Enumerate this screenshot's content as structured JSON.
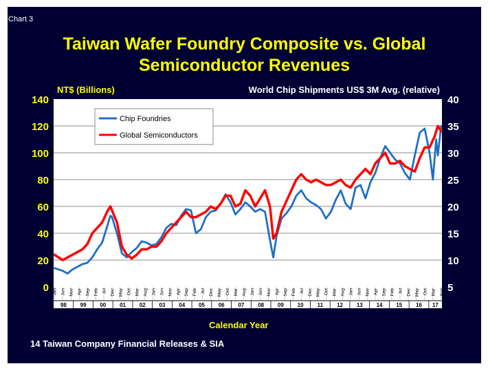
{
  "slide": {
    "chart_number": "Chart 3",
    "title_line1": "Taiwan Wafer Foundry Composite vs. Global",
    "title_line2": "Semiconductor Revenues",
    "source": "14 Taiwan Company Financial Releases & SIA",
    "background_color": "#000033",
    "title_color": "#ffff00"
  },
  "chart_data": {
    "type": "line",
    "title": "Taiwan Wafer Foundry Composite vs. Global Semiconductor Revenues",
    "xlabel": "Calendar Year",
    "ylabel_left": "NT$ (Billions)",
    "ylabel_right": "World Chip Shipments US$ 3M Avg. (relative)",
    "ylim_left": [
      0,
      140
    ],
    "ylim_right": [
      5,
      40
    ],
    "yticks_left": [
      "0",
      "20",
      "40",
      "60",
      "80",
      "100",
      "120",
      "140"
    ],
    "yticks_right": [
      "5",
      "10",
      "15",
      "20",
      "25",
      "30",
      "35",
      "40"
    ],
    "grid": true,
    "legend_position": "top-left",
    "x_start": "1998-01",
    "x_end": "2017-08",
    "month_ticks": [
      "Jan",
      "Jun",
      "Nov",
      "Apr",
      "Sep",
      "Feb",
      "Jul",
      "Dec",
      "May",
      "Oct",
      "Mar",
      "Aug",
      "Jan",
      "Jun",
      "Nov",
      "Apr",
      "Sep",
      "Feb",
      "Jul",
      "Dec",
      "May",
      "Oct",
      "Mar",
      "Aug",
      "Jan",
      "Jun",
      "Nov",
      "Apr",
      "Sep",
      "Feb",
      "Jul",
      "Dec",
      "May",
      "Oct",
      "Mar",
      "Aug",
      "Jan",
      "Jun",
      "Nov",
      "Apr",
      "Sep",
      "Feb",
      "Jul",
      "Dec",
      "May",
      "Oct",
      "Mar",
      "Aug"
    ],
    "year_labels": [
      "98",
      "99",
      "00",
      "01",
      "02",
      "03",
      "04",
      "05",
      "06",
      "07",
      "08",
      "09",
      "10",
      "11",
      "12",
      "13",
      "14",
      "15",
      "16",
      "17"
    ],
    "series": [
      {
        "name": "Chip Foundries",
        "color": "#1f6fc4",
        "axis": "left",
        "points": [
          [
            "1998-01",
            14
          ],
          [
            "1998-06",
            12
          ],
          [
            "1998-09",
            10
          ],
          [
            "1998-12",
            13
          ],
          [
            "1999-03",
            15
          ],
          [
            "1999-06",
            17
          ],
          [
            "1999-09",
            18
          ],
          [
            "1999-12",
            22
          ],
          [
            "2000-03",
            28
          ],
          [
            "2000-06",
            33
          ],
          [
            "2000-09",
            45
          ],
          [
            "2000-11",
            53
          ],
          [
            "2000-12",
            52
          ],
          [
            "2001-03",
            40
          ],
          [
            "2001-06",
            25
          ],
          [
            "2001-09",
            22
          ],
          [
            "2001-12",
            26
          ],
          [
            "2002-03",
            29
          ],
          [
            "2002-06",
            34
          ],
          [
            "2002-09",
            33
          ],
          [
            "2002-12",
            31
          ],
          [
            "2003-03",
            32
          ],
          [
            "2003-06",
            37
          ],
          [
            "2003-09",
            44
          ],
          [
            "2003-12",
            47
          ],
          [
            "2004-03",
            46
          ],
          [
            "2004-06",
            53
          ],
          [
            "2004-09",
            58
          ],
          [
            "2004-12",
            57
          ],
          [
            "2005-03",
            40
          ],
          [
            "2005-06",
            43
          ],
          [
            "2005-09",
            52
          ],
          [
            "2005-12",
            56
          ],
          [
            "2006-03",
            57
          ],
          [
            "2006-06",
            62
          ],
          [
            "2006-09",
            69
          ],
          [
            "2006-12",
            63
          ],
          [
            "2007-03",
            54
          ],
          [
            "2007-06",
            58
          ],
          [
            "2007-09",
            63
          ],
          [
            "2007-12",
            60
          ],
          [
            "2008-03",
            56
          ],
          [
            "2008-06",
            58
          ],
          [
            "2008-09",
            56
          ],
          [
            "2008-12",
            35
          ],
          [
            "2009-02",
            22
          ],
          [
            "2009-04",
            38
          ],
          [
            "2009-07",
            51
          ],
          [
            "2009-10",
            55
          ],
          [
            "2010-01",
            60
          ],
          [
            "2010-04",
            68
          ],
          [
            "2010-07",
            72
          ],
          [
            "2010-10",
            66
          ],
          [
            "2011-01",
            63
          ],
          [
            "2011-04",
            61
          ],
          [
            "2011-07",
            58
          ],
          [
            "2011-10",
            51
          ],
          [
            "2012-01",
            56
          ],
          [
            "2012-04",
            65
          ],
          [
            "2012-07",
            72
          ],
          [
            "2012-10",
            62
          ],
          [
            "2013-01",
            58
          ],
          [
            "2013-04",
            74
          ],
          [
            "2013-07",
            76
          ],
          [
            "2013-10",
            66
          ],
          [
            "2014-01",
            78
          ],
          [
            "2014-04",
            85
          ],
          [
            "2014-07",
            96
          ],
          [
            "2014-10",
            105
          ],
          [
            "2015-01",
            100
          ],
          [
            "2015-04",
            95
          ],
          [
            "2015-07",
            92
          ],
          [
            "2015-10",
            85
          ],
          [
            "2016-01",
            80
          ],
          [
            "2016-04",
            98
          ],
          [
            "2016-07",
            115
          ],
          [
            "2016-10",
            118
          ],
          [
            "2017-01",
            100
          ],
          [
            "2017-03",
            80
          ],
          [
            "2017-05",
            110
          ],
          [
            "2017-06",
            98
          ],
          [
            "2017-08",
            120
          ]
        ]
      },
      {
        "name": "Global Semiconductors",
        "color": "#ff0000",
        "axis": "right",
        "points": [
          [
            "1998-01",
            11
          ],
          [
            "1998-06",
            10
          ],
          [
            "1998-12",
            11
          ],
          [
            "1999-06",
            12
          ],
          [
            "1999-09",
            13
          ],
          [
            "1999-12",
            15
          ],
          [
            "2000-03",
            16
          ],
          [
            "2000-06",
            17
          ],
          [
            "2000-09",
            19
          ],
          [
            "2000-11",
            20
          ],
          [
            "2001-03",
            17
          ],
          [
            "2001-06",
            12.5
          ],
          [
            "2001-09",
            11
          ],
          [
            "2001-12",
            10.3
          ],
          [
            "2002-03",
            11
          ],
          [
            "2002-06",
            12
          ],
          [
            "2002-09",
            12
          ],
          [
            "2002-12",
            12.5
          ],
          [
            "2003-03",
            12.5
          ],
          [
            "2003-06",
            13.5
          ],
          [
            "2003-09",
            15
          ],
          [
            "2003-12",
            16
          ],
          [
            "2004-03",
            17
          ],
          [
            "2004-06",
            18
          ],
          [
            "2004-09",
            19
          ],
          [
            "2004-12",
            18
          ],
          [
            "2005-03",
            18
          ],
          [
            "2005-06",
            18.5
          ],
          [
            "2005-09",
            19
          ],
          [
            "2005-12",
            20
          ],
          [
            "2006-03",
            19.5
          ],
          [
            "2006-06",
            20.5
          ],
          [
            "2006-09",
            22
          ],
          [
            "2006-12",
            22
          ],
          [
            "2007-03",
            20
          ],
          [
            "2007-06",
            20.5
          ],
          [
            "2007-09",
            23
          ],
          [
            "2007-12",
            22
          ],
          [
            "2008-03",
            20
          ],
          [
            "2008-06",
            21.5
          ],
          [
            "2008-09",
            23
          ],
          [
            "2008-12",
            20
          ],
          [
            "2009-02",
            14
          ],
          [
            "2009-04",
            15
          ],
          [
            "2009-07",
            19
          ],
          [
            "2009-10",
            21
          ],
          [
            "2010-01",
            23
          ],
          [
            "2010-04",
            25
          ],
          [
            "2010-07",
            26
          ],
          [
            "2010-10",
            25
          ],
          [
            "2011-01",
            24.5
          ],
          [
            "2011-04",
            25
          ],
          [
            "2011-07",
            24.5
          ],
          [
            "2011-10",
            24
          ],
          [
            "2012-01",
            24
          ],
          [
            "2012-04",
            24.5
          ],
          [
            "2012-07",
            25
          ],
          [
            "2012-10",
            24
          ],
          [
            "2013-01",
            23.5
          ],
          [
            "2013-04",
            25
          ],
          [
            "2013-07",
            26
          ],
          [
            "2013-10",
            27
          ],
          [
            "2014-01",
            26
          ],
          [
            "2014-04",
            28
          ],
          [
            "2014-07",
            29
          ],
          [
            "2014-10",
            30
          ],
          [
            "2015-01",
            28
          ],
          [
            "2015-04",
            28
          ],
          [
            "2015-07",
            28.5
          ],
          [
            "2015-10",
            27.5
          ],
          [
            "2016-01",
            27
          ],
          [
            "2016-04",
            26.5
          ],
          [
            "2016-07",
            29
          ],
          [
            "2016-10",
            31
          ],
          [
            "2017-01",
            31
          ],
          [
            "2017-04",
            33
          ],
          [
            "2017-06",
            35
          ],
          [
            "2017-08",
            34
          ]
        ]
      }
    ]
  }
}
